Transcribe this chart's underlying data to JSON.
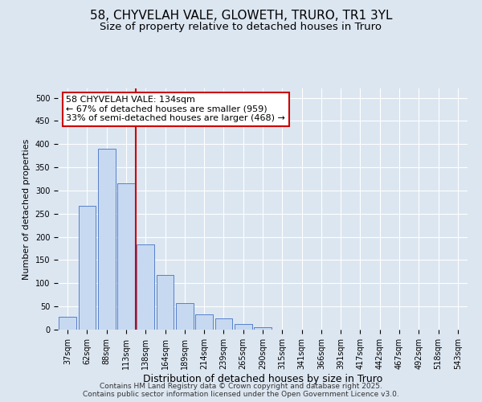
{
  "title": "58, CHYVELAH VALE, GLOWETH, TRURO, TR1 3YL",
  "subtitle": "Size of property relative to detached houses in Truro",
  "xlabel": "Distribution of detached houses by size in Truro",
  "ylabel": "Number of detached properties",
  "categories": [
    "37sqm",
    "62sqm",
    "88sqm",
    "113sqm",
    "138sqm",
    "164sqm",
    "189sqm",
    "214sqm",
    "239sqm",
    "265sqm",
    "290sqm",
    "315sqm",
    "341sqm",
    "366sqm",
    "391sqm",
    "417sqm",
    "442sqm",
    "467sqm",
    "492sqm",
    "518sqm",
    "543sqm"
  ],
  "values": [
    28,
    267,
    390,
    315,
    183,
    118,
    58,
    33,
    24,
    13,
    6,
    0,
    0,
    0,
    0,
    0,
    0,
    0,
    0,
    0,
    0
  ],
  "bar_color": "#c6d9f1",
  "bar_edge_color": "#4472c4",
  "vline_color": "#cc0000",
  "annotation_line1": "58 CHYVELAH VALE: 134sqm",
  "annotation_line2": "← 67% of detached houses are smaller (959)",
  "annotation_line3": "33% of semi-detached houses are larger (468) →",
  "annotation_box_color": "#ffffff",
  "annotation_box_edge": "#cc0000",
  "ylim": [
    0,
    520
  ],
  "yticks": [
    0,
    50,
    100,
    150,
    200,
    250,
    300,
    350,
    400,
    450,
    500
  ],
  "bg_color": "#dce6f1",
  "grid_color": "#ffffff",
  "footer": "Contains HM Land Registry data © Crown copyright and database right 2025.\nContains public sector information licensed under the Open Government Licence v3.0.",
  "title_fontsize": 11,
  "subtitle_fontsize": 9.5,
  "xlabel_fontsize": 9,
  "ylabel_fontsize": 8,
  "tick_fontsize": 7,
  "annotation_fontsize": 8,
  "footer_fontsize": 6.5
}
